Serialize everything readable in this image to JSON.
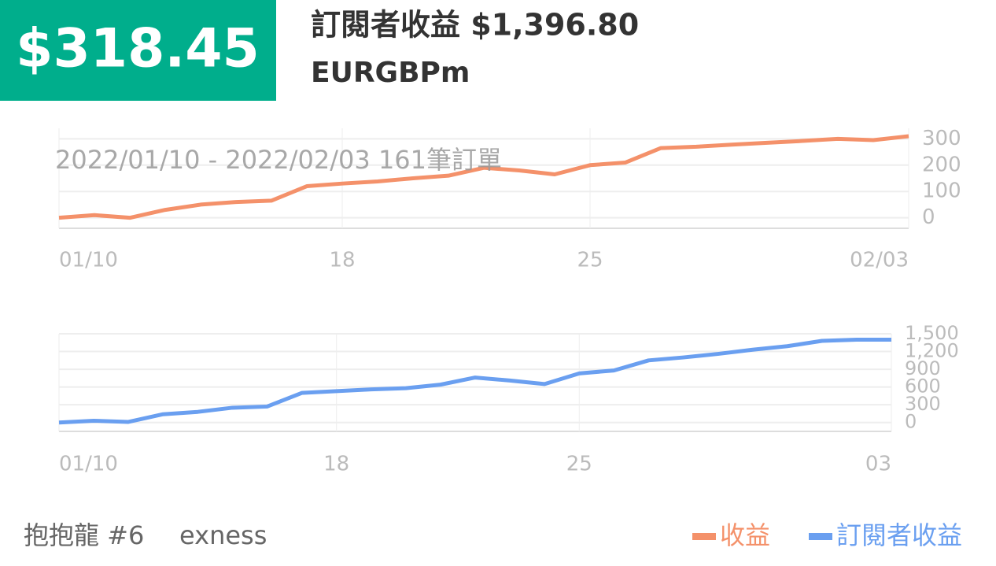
{
  "header": {
    "profit": "$318.45",
    "title": "訂閱者收益 $1,396.80",
    "symbol": "EURGBPm"
  },
  "footer": {
    "name": "抱抱龍 #6",
    "broker": "exness"
  },
  "chart_data": [
    {
      "type": "line",
      "subtitle": "2022/01/10 - 2022/02/03  161筆訂單",
      "x": [
        "2022/01/10",
        "2022/01/11",
        "2022/01/12",
        "2022/01/13",
        "2022/01/14",
        "2022/01/15",
        "2022/01/16",
        "2022/01/17",
        "2022/01/18",
        "2022/01/19",
        "2022/01/20",
        "2022/01/21",
        "2022/01/22",
        "2022/01/23",
        "2022/01/24",
        "2022/01/25",
        "2022/01/26",
        "2022/01/27",
        "2022/01/28",
        "2022/01/29",
        "2022/01/30",
        "2022/01/31",
        "2022/02/01",
        "2022/02/02",
        "2022/02/03"
      ],
      "series": [
        {
          "name": "收益",
          "color": "#f4916a",
          "values": [
            0,
            10,
            0,
            30,
            50,
            60,
            65,
            120,
            130,
            138,
            150,
            160,
            190,
            180,
            165,
            200,
            210,
            265,
            270,
            278,
            285,
            292,
            300,
            295,
            310
          ]
        }
      ],
      "ylim": [
        -40,
        340
      ],
      "yticks": [
        0,
        100,
        200,
        300
      ],
      "xlim": [
        "2022/01/10",
        "2022/02/03"
      ],
      "xticks": [
        {
          "value": "2022/01/10",
          "label": "01/10"
        },
        {
          "value": "2022/01/18",
          "label": "18"
        },
        {
          "value": "2022/01/25",
          "label": "25"
        },
        {
          "value": "2022/02/03",
          "label": "02/03"
        }
      ],
      "grid": true
    },
    {
      "type": "line",
      "x": [
        "2022/01/10",
        "2022/01/11",
        "2022/01/12",
        "2022/01/13",
        "2022/01/14",
        "2022/01/15",
        "2022/01/16",
        "2022/01/17",
        "2022/01/18",
        "2022/01/19",
        "2022/01/20",
        "2022/01/21",
        "2022/01/22",
        "2022/01/23",
        "2022/01/24",
        "2022/01/25",
        "2022/01/26",
        "2022/01/27",
        "2022/01/28",
        "2022/01/29",
        "2022/01/30",
        "2022/01/31",
        "2022/02/01",
        "2022/02/02",
        "2022/02/03"
      ],
      "series": [
        {
          "name": "訂閱者收益",
          "color": "#6a9ff0",
          "values": [
            0,
            30,
            10,
            140,
            180,
            250,
            270,
            500,
            530,
            560,
            580,
            640,
            760,
            710,
            650,
            830,
            880,
            1050,
            1100,
            1160,
            1230,
            1290,
            1380,
            1400,
            1400
          ]
        }
      ],
      "ylim": [
        -150,
        1500
      ],
      "yticks": [
        0,
        300,
        600,
        900,
        {
          "value": 1200,
          "label": "1,200"
        },
        {
          "value": 1500,
          "label": "1,500"
        }
      ],
      "xlim": [
        "2022/01/10",
        "2022/02/03"
      ],
      "xticks": [
        {
          "value": "2022/01/10",
          "label": "01/10"
        },
        {
          "value": "2022/01/18",
          "label": "18"
        },
        {
          "value": "2022/01/25",
          "label": "25"
        },
        {
          "value": "2022/02/03",
          "label": "03"
        }
      ],
      "grid": true
    }
  ]
}
